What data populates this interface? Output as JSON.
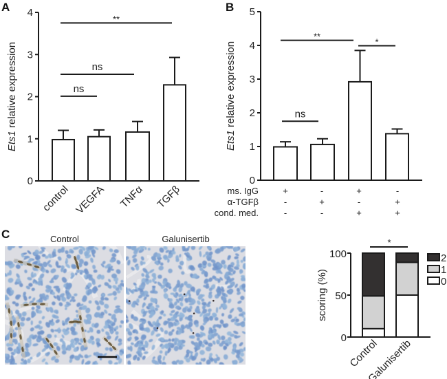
{
  "panels": {
    "A": {
      "label": "A"
    },
    "B": {
      "label": "B"
    },
    "C": {
      "label": "C"
    }
  },
  "micrographs": {
    "left_title": "Control",
    "right_title": "Galunisertib",
    "scale_bar": true
  },
  "colors": {
    "axis": "#1a1a1a",
    "bar_fill": "#ffffff",
    "score_2": "#333030",
    "score_1": "#d2d2d2",
    "score_0": "#ffffff",
    "tissue_bg": "#dcdde3",
    "nucleus": "#7f9fd0",
    "stain": "#5a4a2a"
  },
  "chart_data": [
    {
      "id": "A",
      "type": "bar",
      "title": "",
      "xlabel": "",
      "ylabel_italic": "Ets1",
      "ylabel_rest": " relative expression",
      "ylabel": "Ets1 relative expression",
      "ylim": [
        0,
        4
      ],
      "yticks": [
        0,
        1,
        2,
        3,
        4
      ],
      "grid": false,
      "legend": null,
      "categories": [
        "control",
        "VEGFA",
        "TNFα",
        "TGFβ"
      ],
      "values": [
        0.98,
        1.05,
        1.16,
        2.28
      ],
      "error_upper": [
        1.2,
        1.21,
        1.41,
        2.93
      ],
      "significance": [
        {
          "from": "control",
          "to": "VEGFA",
          "label": "ns",
          "y": 2.01
        },
        {
          "from": "control",
          "to": "TNFα",
          "label": "ns",
          "y": 2.53
        },
        {
          "from": "control",
          "to": "TGFβ",
          "label": "**",
          "y": 3.75
        }
      ]
    },
    {
      "id": "B",
      "type": "bar",
      "title": "",
      "xlabel": "",
      "ylabel_italic": "Ets1",
      "ylabel_rest": " relative expression",
      "ylabel": "Ets1 relative expression",
      "ylim": [
        0,
        5
      ],
      "yticks": [
        0,
        1,
        2,
        3,
        4,
        5
      ],
      "grid": false,
      "legend": null,
      "categories": [
        "1",
        "2",
        "3",
        "4"
      ],
      "condition_rows": [
        {
          "label": "ms. IgG",
          "values": [
            "+",
            "-",
            "+",
            "-"
          ]
        },
        {
          "label": "α-TGFβ",
          "values": [
            "-",
            "+",
            "-",
            "+"
          ]
        },
        {
          "label": "cond. med.",
          "values": [
            "-",
            "-",
            "+",
            "+"
          ]
        }
      ],
      "values": [
        0.99,
        1.06,
        2.92,
        1.38
      ],
      "error_upper": [
        1.14,
        1.23,
        3.85,
        1.52
      ],
      "significance": [
        {
          "from": "1",
          "to": "2",
          "label": "ns",
          "y": 1.75
        },
        {
          "from": "1",
          "to": "3",
          "label": "**",
          "y": 4.15
        },
        {
          "from": "3",
          "to": "4",
          "label": "*",
          "y": 3.99
        }
      ]
    },
    {
      "id": "C",
      "type": "bar",
      "stacked": true,
      "title": "",
      "xlabel": "",
      "ylabel": "scoring (%)",
      "ylim": [
        0,
        100
      ],
      "yticks": [
        0,
        50,
        100
      ],
      "grid": false,
      "legend_position": "right",
      "categories": [
        "Control",
        "Galunisertib"
      ],
      "series": [
        {
          "name": "0",
          "values": [
            10,
            50
          ]
        },
        {
          "name": "1",
          "values": [
            39,
            39
          ]
        },
        {
          "name": "2",
          "values": [
            51,
            11
          ]
        }
      ],
      "legend": [
        "2",
        "1",
        "0"
      ],
      "significance": [
        {
          "from": "Control",
          "to": "Galunisertib",
          "label": "*"
        }
      ]
    }
  ]
}
